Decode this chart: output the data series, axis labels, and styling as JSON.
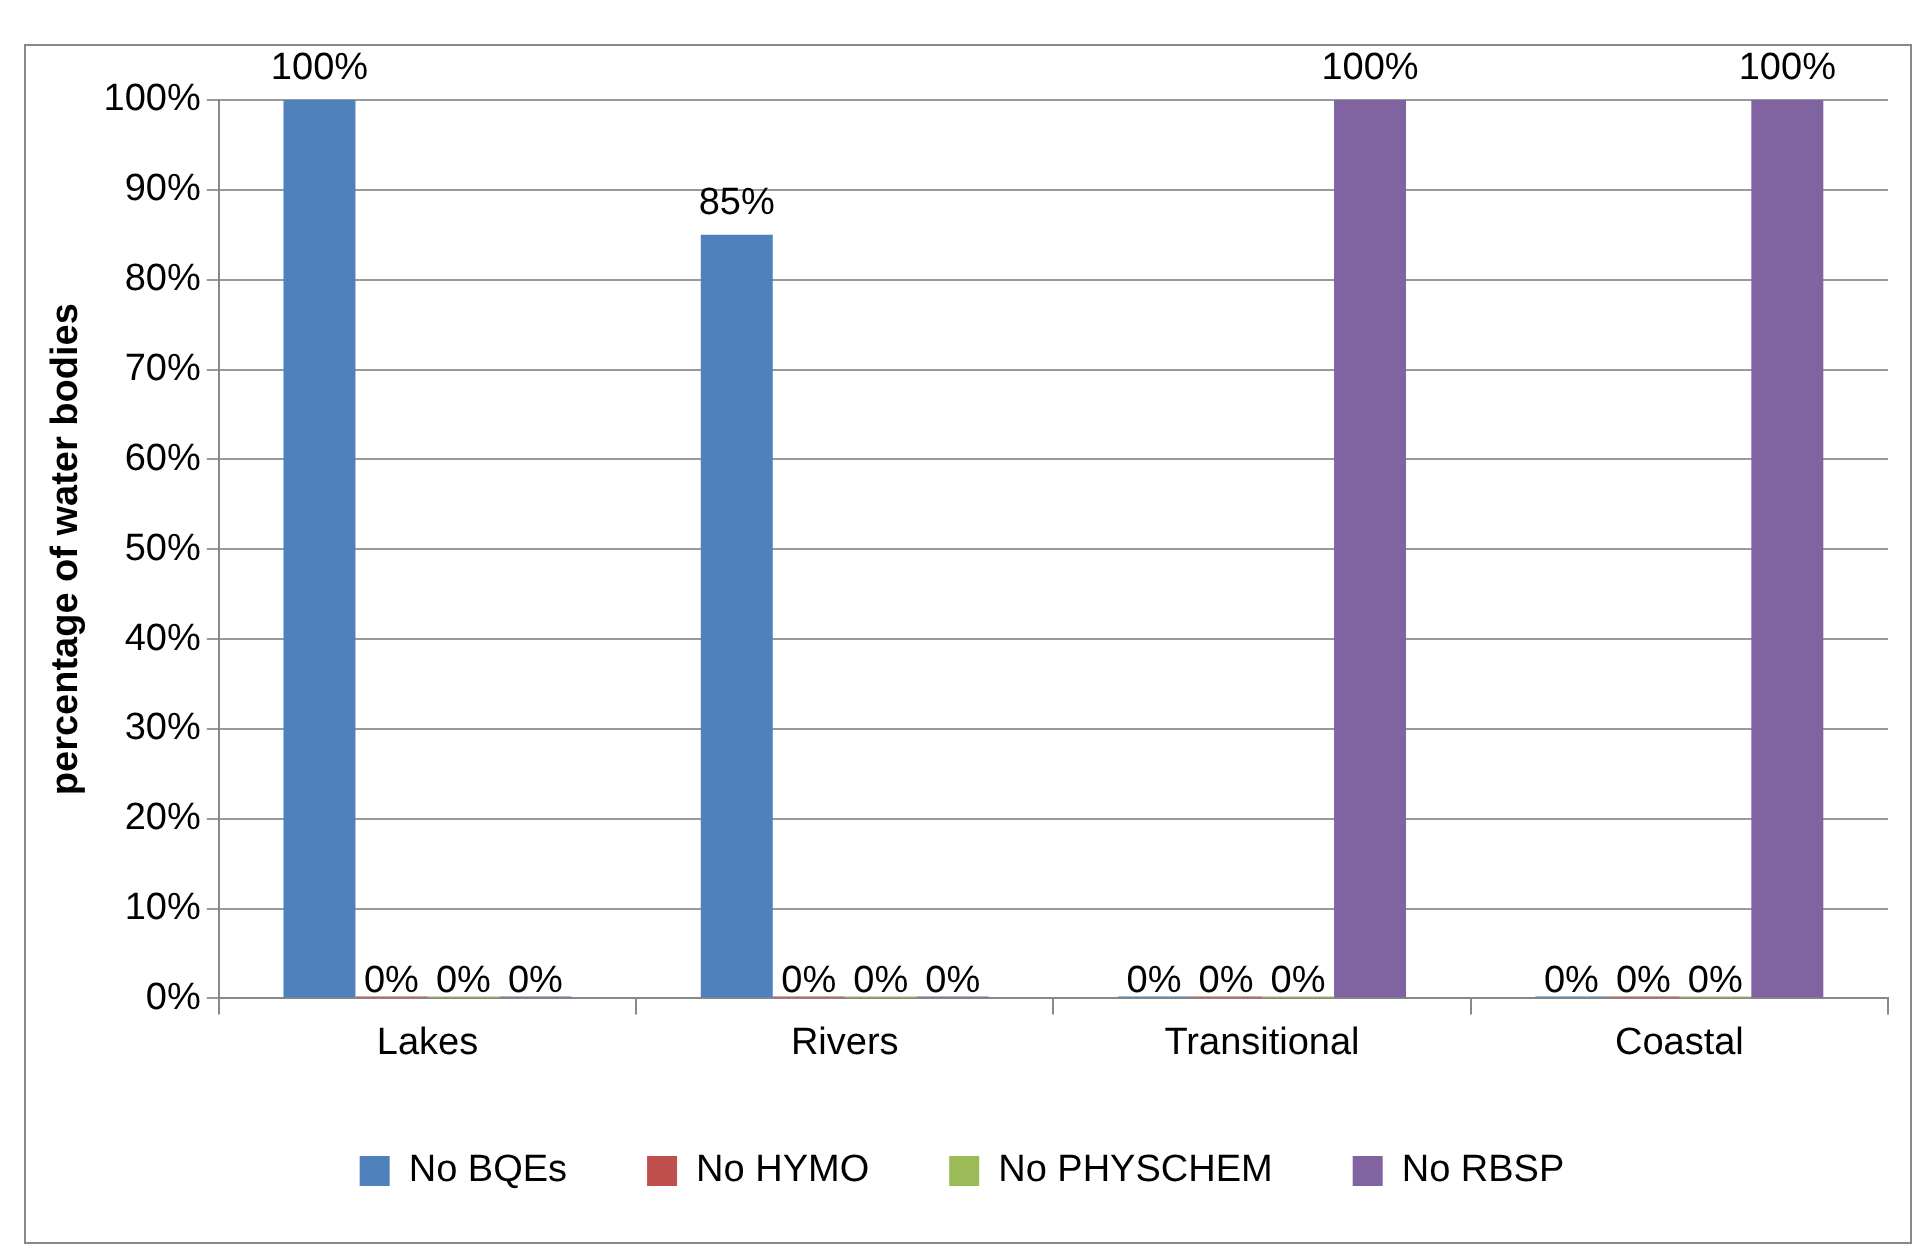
{
  "chart_data": {
    "type": "bar",
    "ylabel": "percentage of water bodies",
    "categories": [
      "Lakes",
      "Rivers",
      "Transitional",
      "Coastal"
    ],
    "series": [
      {
        "name": "No BQEs",
        "color": "#4f81bd",
        "values": [
          100,
          85,
          0,
          0
        ],
        "value_labels": [
          "100%",
          "85%",
          "0%",
          "0%"
        ]
      },
      {
        "name": "No HYMO",
        "color": "#c0504d",
        "values": [
          0,
          0,
          0,
          0
        ],
        "value_labels": [
          "0%",
          "0%",
          "0%",
          "0%"
        ]
      },
      {
        "name": "No PHYSCHEM",
        "color": "#9bbb59",
        "values": [
          0,
          0,
          0,
          0
        ],
        "value_labels": [
          "0%",
          "0%",
          "0%",
          "0%"
        ]
      },
      {
        "name": "No RBSP",
        "color": "#8064a2",
        "values": [
          0,
          0,
          100,
          100
        ],
        "value_labels": [
          "0%",
          "0%",
          "100%",
          "100%"
        ]
      }
    ],
    "ylim": [
      0,
      100
    ],
    "yticks": [
      {
        "value": 0,
        "label": "0%"
      },
      {
        "value": 10,
        "label": "10%"
      },
      {
        "value": 20,
        "label": "20%"
      },
      {
        "value": 30,
        "label": "30%"
      },
      {
        "value": 40,
        "label": "40%"
      },
      {
        "value": 50,
        "label": "50%"
      },
      {
        "value": 60,
        "label": "60%"
      },
      {
        "value": 70,
        "label": "70%"
      },
      {
        "value": 80,
        "label": "80%"
      },
      {
        "value": 90,
        "label": "90%"
      },
      {
        "value": 100,
        "label": "100%"
      }
    ],
    "grid": "y",
    "legend": "bottom"
  }
}
